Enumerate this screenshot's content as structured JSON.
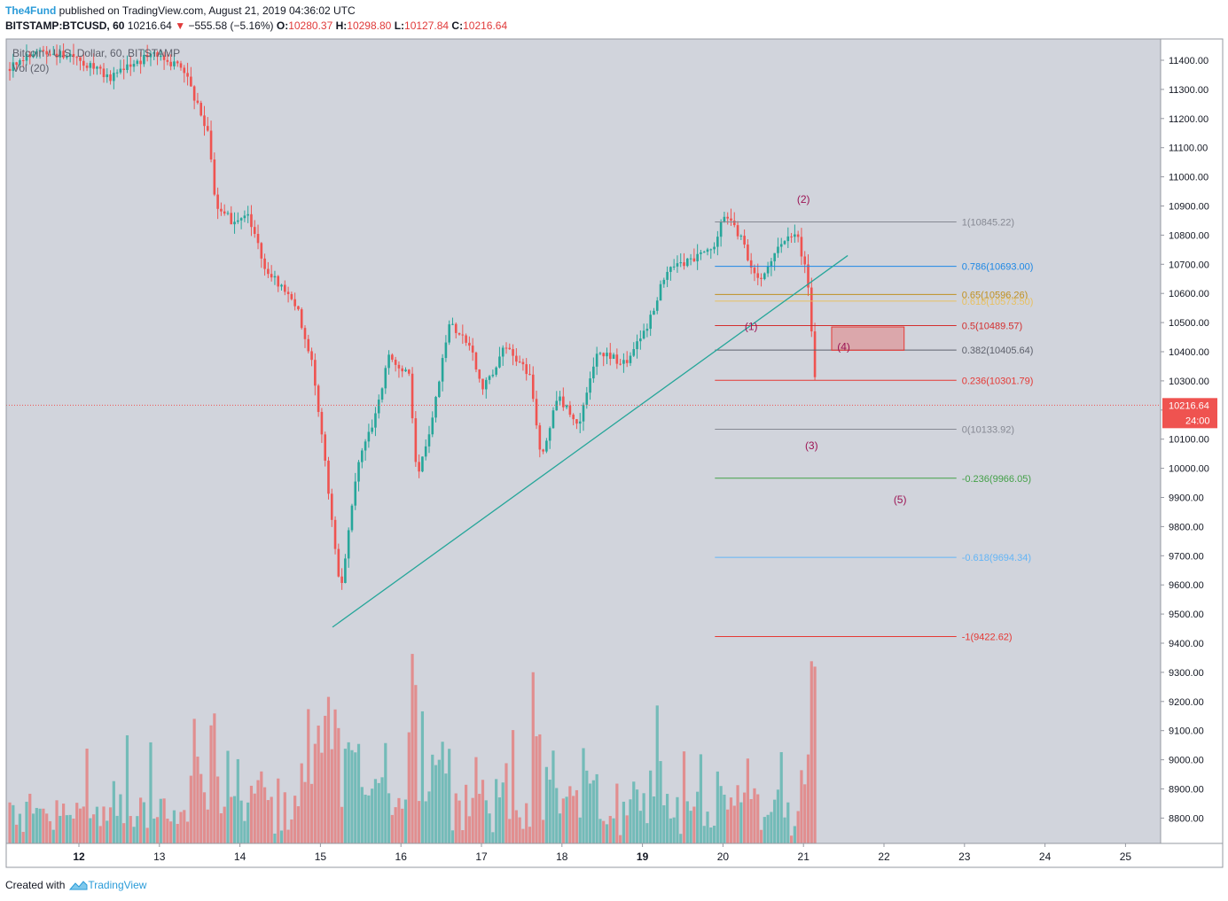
{
  "header": {
    "publisher": "The4Fund",
    "published_text": "published on TradingView.com, August 21, 2019 04:36:02 UTC",
    "symbol": "BITSTAMP:BTCUSD, 60",
    "last": "10216.64",
    "change": "−555.58 (−5.16%)",
    "o_label": "O:",
    "o": "10280.37",
    "h_label": "H:",
    "h": "10298.80",
    "l_label": "L:",
    "l": "10127.84",
    "c_label": "C:",
    "c": "10216.64"
  },
  "footer": {
    "created_with": "Created with",
    "brand": "TradingView"
  },
  "colors": {
    "background": "#d1d4dc",
    "up": "#26a69a",
    "down": "#ef5350",
    "trendline": "#26a69a",
    "price_line": "#ef5350",
    "wave_label": "#9c1454"
  },
  "chart_data": {
    "type": "candlestick",
    "title": "Bitcoin / U.S. Dollar, 60, BITSTAMP",
    "volume_label": "Vol (20)",
    "y_axis": {
      "min": 8750,
      "max": 11450,
      "ticks": [
        "11400.00",
        "11300.00",
        "11200.00",
        "11100.00",
        "11000.00",
        "10900.00",
        "10800.00",
        "10700.00",
        "10600.00",
        "10500.00",
        "10400.00",
        "10300.00",
        "10200.00",
        "10100.00",
        "10000.00",
        "9900.00",
        "9800.00",
        "9700.00",
        "9600.00",
        "9500.00",
        "9400.00",
        "9300.00",
        "9200.00",
        "9100.00",
        "9000.00",
        "8900.00",
        "8800.00"
      ]
    },
    "x_axis": {
      "start_day": 11.1,
      "end_day": 25.5,
      "ticks": [
        {
          "day": 12,
          "label": "12",
          "bold": true
        },
        {
          "day": 13,
          "label": "13",
          "bold": false
        },
        {
          "day": 14,
          "label": "14",
          "bold": false
        },
        {
          "day": 15,
          "label": "15",
          "bold": false
        },
        {
          "day": 16,
          "label": "16",
          "bold": false
        },
        {
          "day": 17,
          "label": "17",
          "bold": false
        },
        {
          "day": 18,
          "label": "18",
          "bold": false
        },
        {
          "day": 19,
          "label": "19",
          "bold": true
        },
        {
          "day": 20,
          "label": "20",
          "bold": false
        },
        {
          "day": 21,
          "label": "21",
          "bold": false
        },
        {
          "day": 22,
          "label": "22",
          "bold": false
        },
        {
          "day": 23,
          "label": "23",
          "bold": false
        },
        {
          "day": 24,
          "label": "24",
          "bold": false
        },
        {
          "day": 25,
          "label": "25",
          "bold": false
        }
      ]
    },
    "price_path": [
      [
        11.1,
        11370
      ],
      [
        11.5,
        11440
      ],
      [
        12.0,
        11400
      ],
      [
        12.4,
        11340
      ],
      [
        12.9,
        11420
      ],
      [
        13.3,
        11370
      ],
      [
        13.6,
        11150
      ],
      [
        13.7,
        10900
      ],
      [
        13.9,
        10850
      ],
      [
        14.1,
        10860
      ],
      [
        14.3,
        10700
      ],
      [
        14.5,
        10620
      ],
      [
        14.7,
        10560
      ],
      [
        14.9,
        10350
      ],
      [
        15.0,
        10150
      ],
      [
        15.15,
        9800
      ],
      [
        15.25,
        9580
      ],
      [
        15.45,
        10000
      ],
      [
        15.7,
        10200
      ],
      [
        15.85,
        10380
      ],
      [
        16.1,
        10330
      ],
      [
        16.2,
        9950
      ],
      [
        16.4,
        10180
      ],
      [
        16.6,
        10500
      ],
      [
        16.9,
        10400
      ],
      [
        17.0,
        10260
      ],
      [
        17.3,
        10420
      ],
      [
        17.6,
        10320
      ],
      [
        17.75,
        10030
      ],
      [
        17.95,
        10250
      ],
      [
        18.2,
        10150
      ],
      [
        18.45,
        10400
      ],
      [
        18.8,
        10360
      ],
      [
        19.05,
        10480
      ],
      [
        19.3,
        10680
      ],
      [
        19.6,
        10720
      ],
      [
        19.9,
        10750
      ],
      [
        20.0,
        10880
      ],
      [
        20.2,
        10800
      ],
      [
        20.45,
        10630
      ],
      [
        20.7,
        10760
      ],
      [
        20.9,
        10820
      ],
      [
        21.05,
        10650
      ],
      [
        21.12,
        10380
      ],
      [
        21.18,
        10216.64
      ]
    ],
    "fibonacci": [
      {
        "ratio": "1",
        "price": 10845.22,
        "label": "1(10845.22)",
        "color": "#868993"
      },
      {
        "ratio": "0.786",
        "price": 10693.0,
        "label": "0.786(10693.00)",
        "color": "#1e88e5"
      },
      {
        "ratio": "0.65",
        "price": 10596.26,
        "label": "0.65(10596.26)",
        "color": "#c09020"
      },
      {
        "ratio": "0.618",
        "price": 10573.5,
        "label": "0.618(10573.50)",
        "color": "#e8c060"
      },
      {
        "ratio": "0.5",
        "price": 10489.57,
        "label": "0.5(10489.57)",
        "color": "#d32f2f"
      },
      {
        "ratio": "0.382",
        "price": 10405.64,
        "label": "0.382(10405.64)",
        "color": "#5d606b"
      },
      {
        "ratio": "0.236",
        "price": 10301.79,
        "label": "0.236(10301.79)",
        "color": "#e53935"
      },
      {
        "ratio": "0",
        "price": 10133.92,
        "label": "0(10133.92)",
        "color": "#868993"
      },
      {
        "ratio": "-0.236",
        "price": 9966.05,
        "label": "-0.236(9966.05)",
        "color": "#43a047"
      },
      {
        "ratio": "-0.618",
        "price": 9694.34,
        "label": "-0.618(9694.34)",
        "color": "#64b5f6"
      },
      {
        "ratio": "-1",
        "price": 9422.62,
        "label": "-1(9422.62)",
        "color": "#e53935"
      }
    ],
    "fib_start_day": 19.9,
    "fib_end_day": 22.9,
    "trendline": {
      "start": [
        15.15,
        9455
      ],
      "end": [
        21.55,
        10730
      ]
    },
    "wave_labels": [
      {
        "label": "(1)",
        "day": 20.35,
        "price": 10475
      },
      {
        "label": "(2)",
        "day": 21.0,
        "price": 10910
      },
      {
        "label": "(3)",
        "day": 21.1,
        "price": 10065
      },
      {
        "label": "(4)",
        "day": 21.5,
        "price": 10405
      },
      {
        "label": "(5)",
        "day": 22.2,
        "price": 9880
      }
    ],
    "zone_box": {
      "label": "(4)",
      "day_start": 21.35,
      "day_end": 22.25,
      "price_top": 10485,
      "price_bottom": 10405
    },
    "current_price": {
      "value": "10216.64",
      "countdown": "24:00",
      "price": 10216.64
    }
  }
}
